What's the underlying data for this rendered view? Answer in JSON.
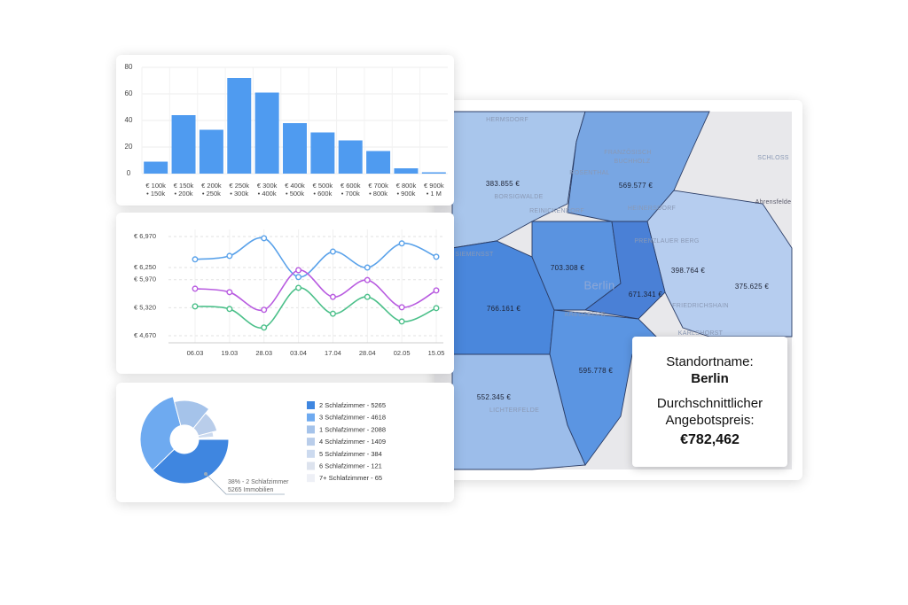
{
  "chart_data": [
    {
      "type": "bar",
      "categories": [
        "€ 100k\n• 150k",
        "€ 150k\n• 200k",
        "€ 200k\n• 250k",
        "€ 250k\n• 300k",
        "€ 300k\n• 400k",
        "€ 400k\n• 500k",
        "€ 500k\n• 600k",
        "€ 600k\n• 700k",
        "€ 700k\n• 800k",
        "€ 800k\n• 900k",
        "€ 900k\n• 1 M"
      ],
      "values": [
        9,
        44,
        33,
        72,
        61,
        38,
        31,
        25,
        17,
        4,
        1
      ],
      "color": "#4f9bf0",
      "ylim": [
        0,
        80
      ],
      "yticks": [
        0,
        20,
        40,
        60,
        80
      ],
      "grid": true
    },
    {
      "type": "line",
      "categories": [
        "06.03",
        "19.03",
        "28.03",
        "03.04",
        "17.04",
        "28.04",
        "02.05",
        "15.05"
      ],
      "series": [
        {
          "color": "#5aa2ea",
          "values": [
            6440,
            6520,
            6930,
            6030,
            6620,
            6250,
            6810,
            6500
          ]
        },
        {
          "color": "#b85be0",
          "values": [
            5760,
            5680,
            5270,
            6190,
            5570,
            5960,
            5330,
            5720
          ]
        },
        {
          "color": "#4cc08a",
          "values": [
            5350,
            5290,
            4860,
            5780,
            5180,
            5570,
            5000,
            5310
          ]
        }
      ],
      "ylim": [
        4670,
        6970
      ],
      "yticks": [
        {
          "value": 4670,
          "label": "€ 4,670"
        },
        {
          "value": 5320,
          "label": "€ 5,320"
        },
        {
          "value": 5970,
          "label": "€ 5,970"
        },
        {
          "value": 6250,
          "label": "€ 6,250"
        },
        {
          "value": 6970,
          "label": "€ 6,970"
        }
      ],
      "grid": true
    },
    {
      "type": "donut",
      "values": [
        5265,
        4618,
        2088,
        1409,
        384,
        121,
        65
      ],
      "value_labels": [
        "2 Schlafzimmer - 5265",
        "3 Schlafzimmer - 4618",
        "1 Schlafzimmer - 2088",
        "4 Schlafzimmer - 1409",
        "5 Schlafzimmer - 384",
        "6 Schlafzimmer - 121",
        "7+ Schlafzimmer - 65"
      ],
      "colors": [
        "#3f86e0",
        "#6eaaf0",
        "#a5c3ea",
        "#b9cdea",
        "#ccdaef",
        "#dde3ee",
        "#eef0f6"
      ],
      "annotation": [
        "38% - 2 Schlafzimmer",
        "5265 Immobilien"
      ]
    }
  ],
  "map": {
    "places": [
      "HERMSDORF",
      "BORSIGWALDE",
      "REINICKENDORF",
      "FRANZÖSISCH",
      "BUCHHOLZ",
      "ROSENTHAL",
      "HEINERSDORF",
      "Ahrensfelde",
      "SCHLOSS",
      "SIEMENSST",
      "PRENZLAUER BERG",
      "Berlin",
      "KREUZBERG",
      "FRIEDRICHSHAIN",
      "KARLSHORST",
      "LICHTERFELDE"
    ],
    "prices": [
      "383.855 €",
      "569.577 €",
      "703.308 €",
      "671.341 €",
      "398.764 €",
      "375.625 €",
      "766.161 €",
      "595.778 €",
      "552.345 €"
    ]
  },
  "tooltip": {
    "label": "Standortname:",
    "name": "Berlin",
    "metric": "Durchschnittlicher Angebotspreis:",
    "value": "€782,462"
  }
}
